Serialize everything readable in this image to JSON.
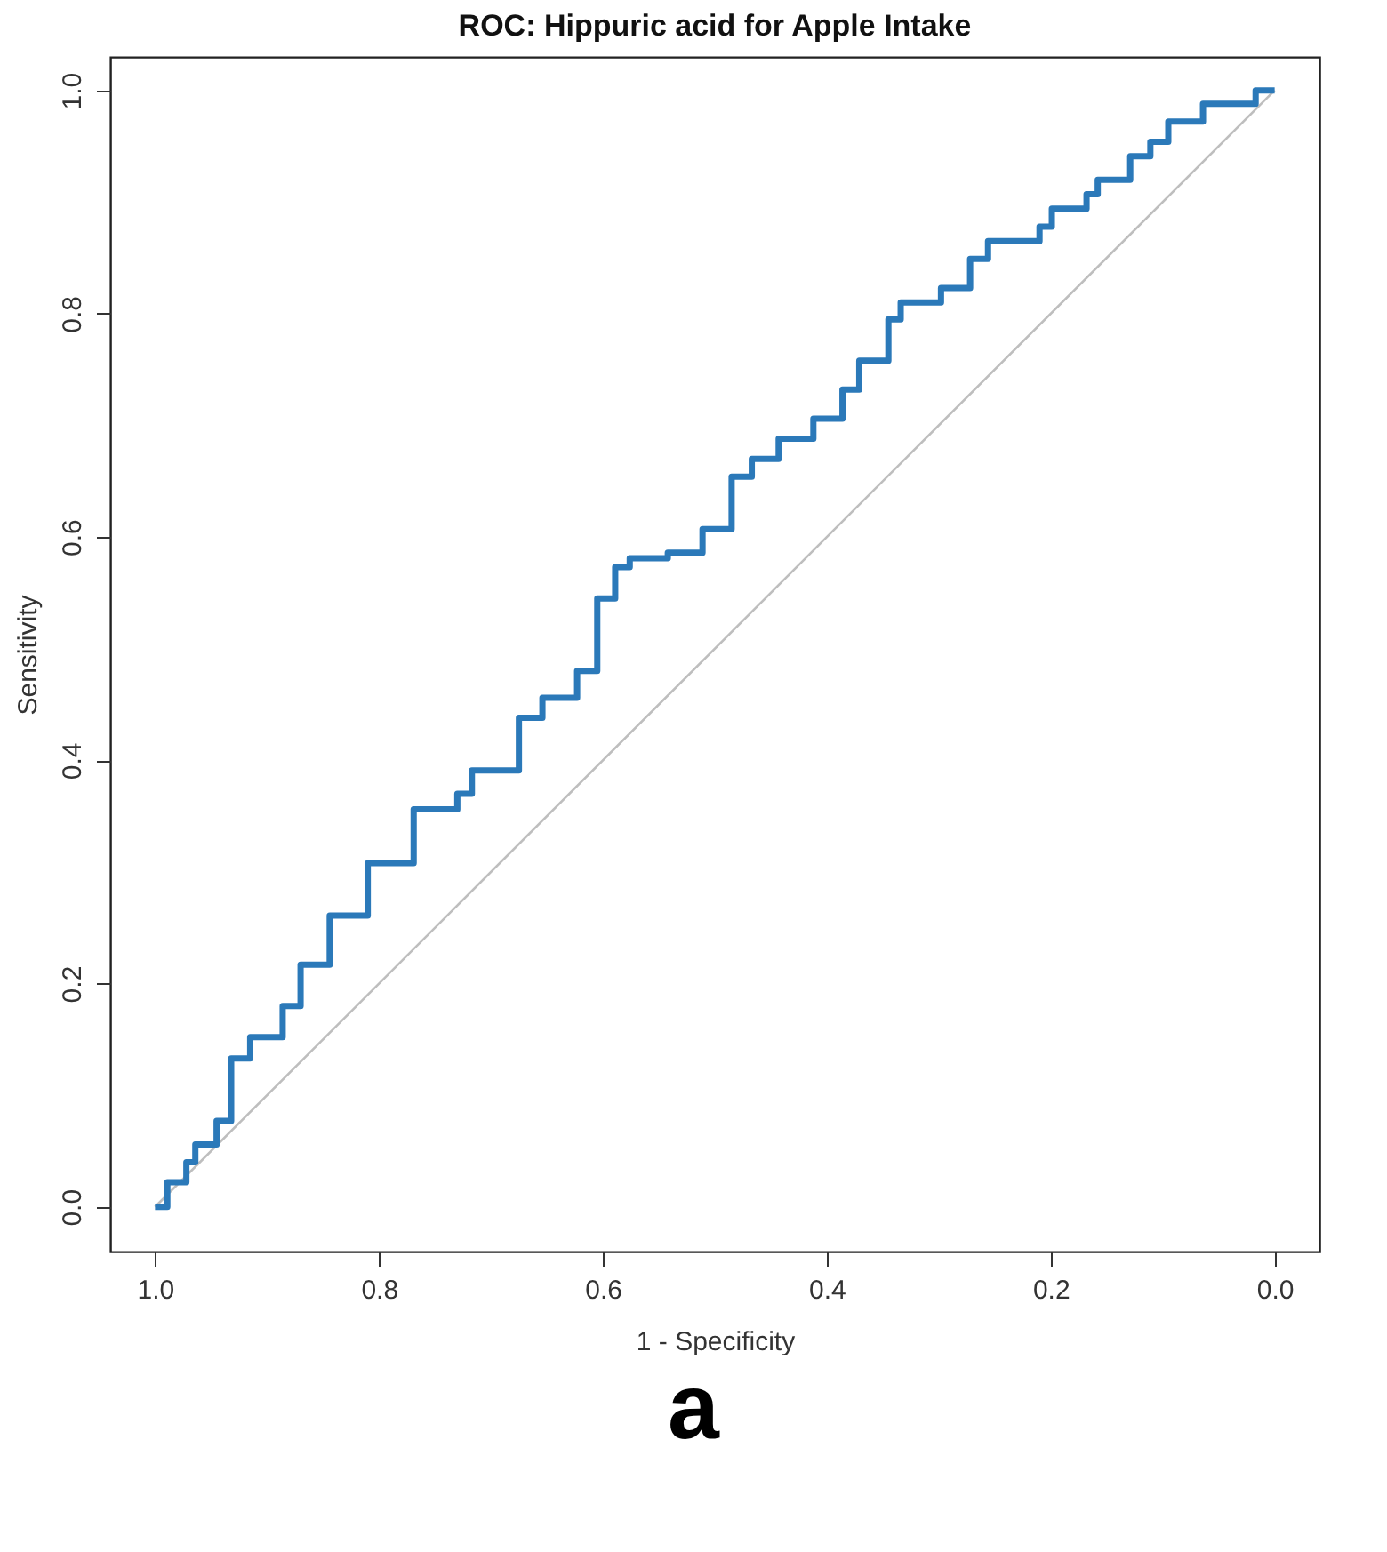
{
  "chart_data": {
    "type": "step",
    "title": "ROC: Hippuric acid for Apple Intake",
    "xlabel": "1 - Specificity",
    "ylabel": "Sensitivity",
    "xlim": [
      1.04,
      -0.04
    ],
    "ylim": [
      -0.04,
      1.03
    ],
    "xticks": [
      {
        "value": 1,
        "label": "1.0"
      },
      {
        "value": 0.8,
        "label": "0.8"
      },
      {
        "value": 0.6,
        "label": "0.6"
      },
      {
        "value": 0.4,
        "label": "0.4"
      },
      {
        "value": 0.2,
        "label": "0.2"
      },
      {
        "value": 0,
        "label": "0.0"
      }
    ],
    "yticks": [
      {
        "value": 0,
        "label": "0.0"
      },
      {
        "value": 0.2,
        "label": "0.2"
      },
      {
        "value": 0.4,
        "label": "0.4"
      },
      {
        "value": 0.6,
        "label": "0.6"
      },
      {
        "value": 0.8,
        "label": "0.8"
      },
      {
        "value": 1,
        "label": "1.0"
      }
    ],
    "grid": false,
    "series": [
      {
        "type": "line",
        "color": "#bebebe",
        "x": [
          1,
          0
        ],
        "values": [
          0,
          1
        ]
      },
      {
        "color": "#2b79b9",
        "x": [
          1.0,
          0.989,
          0.972,
          0.964,
          0.945,
          0.932,
          0.915,
          0.886,
          0.87,
          0.844,
          0.81,
          0.769,
          0.73,
          0.717,
          0.675,
          0.654,
          0.623,
          0.605,
          0.589,
          0.576,
          0.542,
          0.511,
          0.485,
          0.467,
          0.443,
          0.412,
          0.386,
          0.371,
          0.345,
          0.334,
          0.298,
          0.272,
          0.256,
          0.21,
          0.199,
          0.168,
          0.158,
          0.129,
          0.111,
          0.095,
          0.064,
          0.017,
          0.0
        ],
        "values": [
          0.0,
          0.022,
          0.04,
          0.056,
          0.077,
          0.133,
          0.152,
          0.18,
          0.217,
          0.261,
          0.308,
          0.356,
          0.37,
          0.391,
          0.438,
          0.456,
          0.48,
          0.545,
          0.573,
          0.581,
          0.586,
          0.607,
          0.654,
          0.67,
          0.688,
          0.706,
          0.732,
          0.758,
          0.795,
          0.81,
          0.823,
          0.849,
          0.865,
          0.878,
          0.894,
          0.907,
          0.92,
          0.941,
          0.954,
          0.972,
          0.988,
          1.0,
          1.0
        ]
      }
    ],
    "annotations": [
      "a"
    ]
  }
}
